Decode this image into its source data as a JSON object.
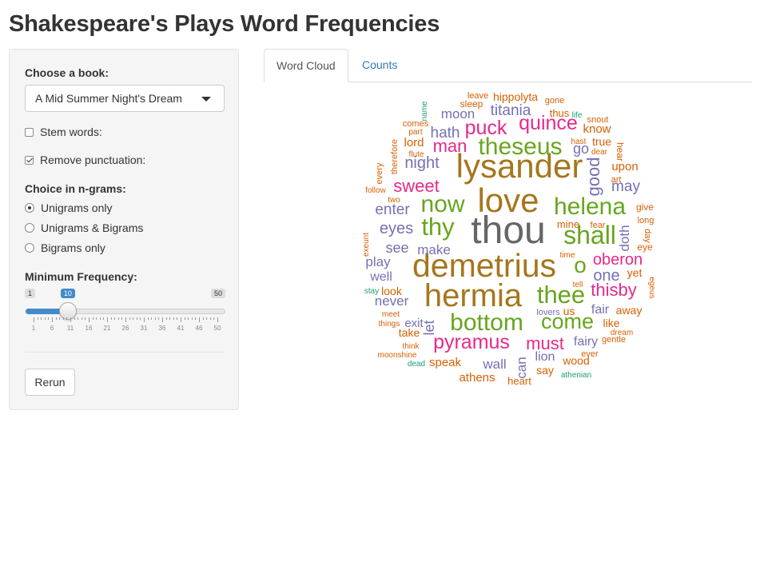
{
  "page": {
    "title": "Shakespeare's Plays Word Frequencies"
  },
  "sidebar": {
    "book_label": "Choose a book:",
    "book_selected": "A Mid Summer Night's Dream",
    "stem_label": "Stem words:",
    "stem_checked": false,
    "punct_label": "Remove punctuation:",
    "punct_checked": true,
    "ngram_label": "Choice in n-grams:",
    "ngram_options": [
      "Unigrams only",
      "Unigrams & Bigrams",
      "Bigrams only"
    ],
    "ngram_selected": 0,
    "minfreq_label": "Minimum Frequency:",
    "slider": {
      "min": 1,
      "max": 50,
      "value": 10,
      "min_label": "1",
      "max_label": "50",
      "value_label": "10"
    },
    "tick_labels": [
      "1",
      "6",
      "11",
      "16",
      "21",
      "26",
      "31",
      "36",
      "41",
      "46",
      "50"
    ],
    "rerun_label": "Rerun"
  },
  "tabs": [
    {
      "label": "Word Cloud",
      "active": true
    },
    {
      "label": "Counts",
      "active": false
    }
  ],
  "colors": {
    "slider_accent": "#428bca",
    "tab_link": "#337ab7",
    "cloud_palette": [
      "#1b9e77",
      "#d95f02",
      "#7570b3",
      "#e7298a",
      "#66a61e",
      "#a6761d",
      "#666666"
    ]
  },
  "cloud_words": [
    {
      "text": "thou",
      "c": 6
    },
    {
      "text": "demetrius",
      "c": 5
    },
    {
      "text": "hermia",
      "c": 5
    },
    {
      "text": "lysander",
      "c": 5
    },
    {
      "text": "love",
      "c": 5
    },
    {
      "text": "bottom",
      "c": 4
    },
    {
      "text": "shall",
      "c": 4
    },
    {
      "text": "helena",
      "c": 4
    },
    {
      "text": "theseus",
      "c": 4
    },
    {
      "text": "now",
      "c": 4
    },
    {
      "text": "thy",
      "c": 4
    },
    {
      "text": "thee",
      "c": 4
    },
    {
      "text": "come",
      "c": 4
    },
    {
      "text": "o",
      "c": 4
    },
    {
      "text": "pyramus",
      "c": 3
    },
    {
      "text": "quince",
      "c": 3
    },
    {
      "text": "puck",
      "c": 3
    },
    {
      "text": "sweet",
      "c": 3
    },
    {
      "text": "man",
      "c": 3
    },
    {
      "text": "thisby",
      "c": 3
    },
    {
      "text": "must",
      "c": 3
    },
    {
      "text": "oberon",
      "c": 2
    },
    {
      "text": "one",
      "c": 2
    },
    {
      "text": "night",
      "c": 2
    },
    {
      "text": "hath",
      "c": 2
    },
    {
      "text": "titania",
      "c": 2
    },
    {
      "text": "moon",
      "c": 2
    },
    {
      "text": "enter",
      "c": 2
    },
    {
      "text": "eyes",
      "c": 2
    },
    {
      "text": "see",
      "c": 2
    },
    {
      "text": "make",
      "c": 2
    },
    {
      "text": "play",
      "c": 2
    },
    {
      "text": "well",
      "c": 2
    },
    {
      "text": "never",
      "c": 2
    },
    {
      "text": "exit",
      "c": 2
    },
    {
      "text": "fairy",
      "c": 2
    },
    {
      "text": "fair",
      "c": 2
    },
    {
      "text": "wall",
      "c": 2
    },
    {
      "text": "may",
      "c": 2
    },
    {
      "text": "good",
      "c": 2
    },
    {
      "text": "go",
      "c": 2
    },
    {
      "text": "lion",
      "c": 2
    },
    {
      "text": "let",
      "c": 2
    },
    {
      "text": "can",
      "c": 2
    },
    {
      "text": "doth",
      "c": 2
    },
    {
      "text": "hippolyta",
      "c": 1
    },
    {
      "text": "lord",
      "c": 1
    },
    {
      "text": "look",
      "c": 1
    },
    {
      "text": "speak",
      "c": 1
    },
    {
      "text": "athens",
      "c": 1
    },
    {
      "text": "take",
      "c": 1
    },
    {
      "text": "say",
      "c": 1
    },
    {
      "text": "us",
      "c": 1
    },
    {
      "text": "upon",
      "c": 1
    },
    {
      "text": "away",
      "c": 1
    },
    {
      "text": "know",
      "c": 1
    },
    {
      "text": "true",
      "c": 1
    },
    {
      "text": "wood",
      "c": 1
    },
    {
      "text": "like",
      "c": 1
    },
    {
      "text": "yet",
      "c": 1
    },
    {
      "text": "heart",
      "c": 1
    },
    {
      "text": "thus",
      "c": 1
    },
    {
      "text": "gone",
      "c": 1
    },
    {
      "text": "sleep",
      "c": 1
    },
    {
      "text": "leave",
      "c": 1
    },
    {
      "text": "comes",
      "c": 1
    },
    {
      "text": "part",
      "c": 1
    },
    {
      "text": "flute",
      "c": 1
    },
    {
      "text": "therefore",
      "c": 1
    },
    {
      "text": "every",
      "c": 1
    },
    {
      "text": "follow",
      "c": 1
    },
    {
      "text": "two",
      "c": 1
    },
    {
      "text": "exeunt",
      "c": 1
    },
    {
      "text": "stay",
      "c": 1
    },
    {
      "text": "meet",
      "c": 1
    },
    {
      "text": "things",
      "c": 1
    },
    {
      "text": "think",
      "c": 1
    },
    {
      "text": "moonshine",
      "c": 1
    },
    {
      "text": "dead",
      "c": 1
    },
    {
      "text": "lovers",
      "c": 1
    },
    {
      "text": "ever",
      "c": 1
    },
    {
      "text": "gentle",
      "c": 1
    },
    {
      "text": "dream",
      "c": 1
    },
    {
      "text": "athenian",
      "c": 1
    },
    {
      "text": "tell",
      "c": 1
    },
    {
      "text": "egeus",
      "c": 1
    },
    {
      "text": "time",
      "c": 1
    },
    {
      "text": "eye",
      "c": 1
    },
    {
      "text": "day",
      "c": 1
    },
    {
      "text": "long",
      "c": 1
    },
    {
      "text": "give",
      "c": 1
    },
    {
      "text": "fear",
      "c": 1
    },
    {
      "text": "mine",
      "c": 1
    },
    {
      "text": "art",
      "c": 1
    },
    {
      "text": "hear",
      "c": 1
    },
    {
      "text": "dear",
      "c": 1
    },
    {
      "text": "hast",
      "c": 1
    },
    {
      "text": "snout",
      "c": 1
    },
    {
      "text": "life",
      "c": 1
    },
    {
      "text": "name",
      "c": 1
    }
  ]
}
